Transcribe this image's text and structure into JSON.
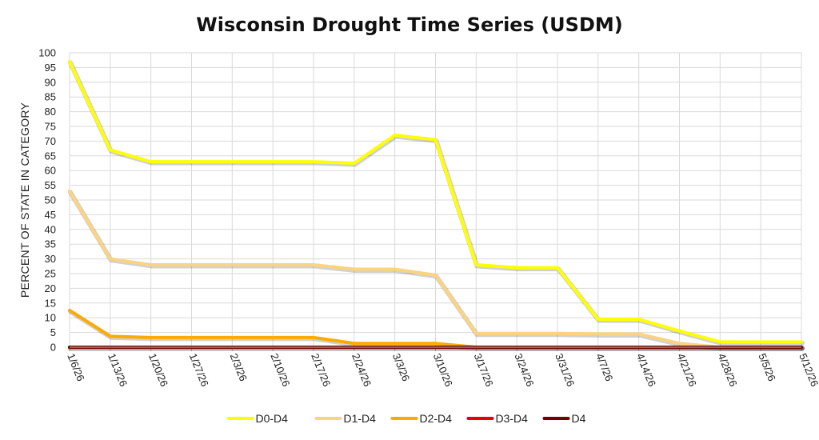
{
  "chart_data": {
    "type": "line",
    "title": "Wisconsin Drought Time Series (USDM)",
    "xlabel": "",
    "ylabel": "PERCENT OF STATE IN CATEGORY",
    "ylim": [
      0,
      100
    ],
    "yticks": [
      0,
      5,
      10,
      15,
      20,
      25,
      30,
      35,
      40,
      45,
      50,
      55,
      60,
      65,
      70,
      75,
      80,
      85,
      90,
      95,
      100
    ],
    "grid": true,
    "legend_position": "bottom",
    "categories": [
      "1/6/26",
      "1/13/26",
      "1/20/26",
      "1/27/26",
      "2/3/26",
      "2/10/26",
      "2/17/26",
      "2/24/26",
      "3/3/26",
      "3/10/26",
      "3/17/26",
      "3/24/26",
      "3/31/26",
      "4/7/26",
      "4/14/26",
      "4/21/26",
      "4/28/26",
      "5/5/26",
      "5/12/26"
    ],
    "series": [
      {
        "name": "D0-D4",
        "color": "#FFFF00",
        "values": [
          97,
          67,
          63,
          63,
          63,
          63,
          63,
          62.5,
          72,
          70.5,
          28,
          27,
          27,
          9.5,
          9.5,
          5.5,
          1.8,
          1.8,
          1.8
        ]
      },
      {
        "name": "D1-D4",
        "color": "#FCD37F",
        "values": [
          53,
          30,
          28,
          28,
          28,
          28,
          28,
          26.5,
          26.5,
          24.5,
          4.7,
          4.7,
          4.7,
          4.5,
          4.5,
          1.3,
          0,
          0,
          0
        ]
      },
      {
        "name": "D2-D4",
        "color": "#FFAA00",
        "values": [
          12.5,
          3.7,
          3.3,
          3.3,
          3.3,
          3.3,
          3.3,
          1.3,
          1.3,
          1.3,
          0,
          0,
          0,
          0,
          0,
          0,
          0,
          0,
          0
        ]
      },
      {
        "name": "D3-D4",
        "color": "#E60000",
        "values": [
          0,
          0,
          0,
          0,
          0,
          0,
          0,
          0,
          0,
          0,
          0,
          0,
          0,
          0,
          0,
          0,
          0,
          0,
          0
        ]
      },
      {
        "name": "D4",
        "color": "#730000",
        "values": [
          0,
          0,
          0,
          0,
          0,
          0,
          0,
          0,
          0,
          0,
          0,
          0,
          0,
          0,
          0,
          0,
          0,
          0,
          0
        ]
      }
    ]
  }
}
